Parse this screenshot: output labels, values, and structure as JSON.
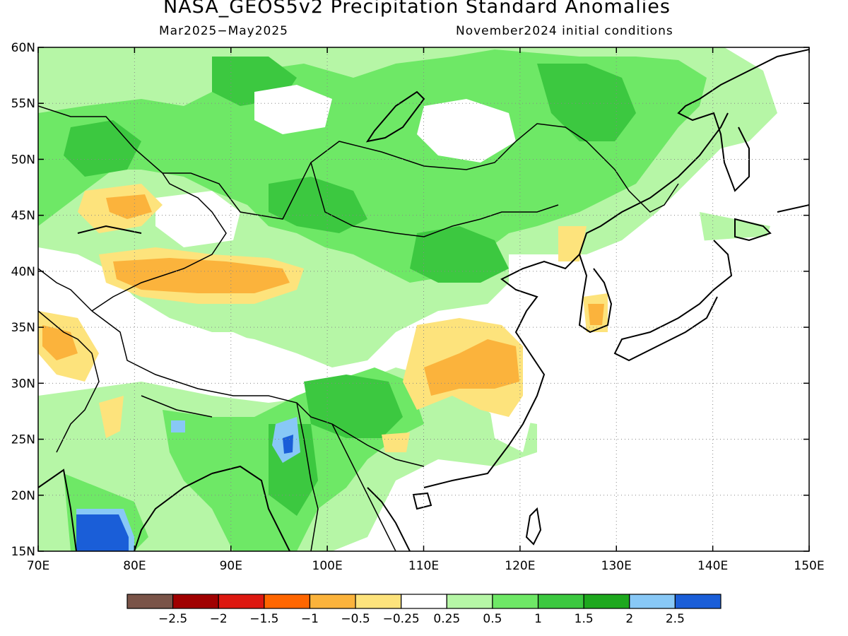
{
  "title": "NASA_GEOS5v2 Precipitation Standard Anomalies",
  "period": "Mar2025−May2025",
  "init": "November2024 initial conditions",
  "lon_ticks": [
    "70E",
    "80E",
    "90E",
    "100E",
    "110E",
    "120E",
    "130E",
    "140E",
    "150E"
  ],
  "lat_ticks": [
    "60N",
    "55N",
    "50N",
    "45N",
    "40N",
    "35N",
    "30N",
    "25N",
    "20N",
    "15N"
  ],
  "colorbar": {
    "colors": [
      "#7a5448",
      "#a00000",
      "#dd1810",
      "#ff6600",
      "#fbb33c",
      "#fde37c",
      "#ffffff",
      "#b6f6a6",
      "#6ee866",
      "#3cc840",
      "#1ea81e",
      "#88c8f6",
      "#1a5ed8"
    ],
    "labels": [
      "−2.5",
      "−2",
      "−1.5",
      "−1",
      "−0.5",
      "−0.25",
      "0.25",
      "0.5",
      "1",
      "1.5",
      "2",
      "2.5"
    ]
  }
}
